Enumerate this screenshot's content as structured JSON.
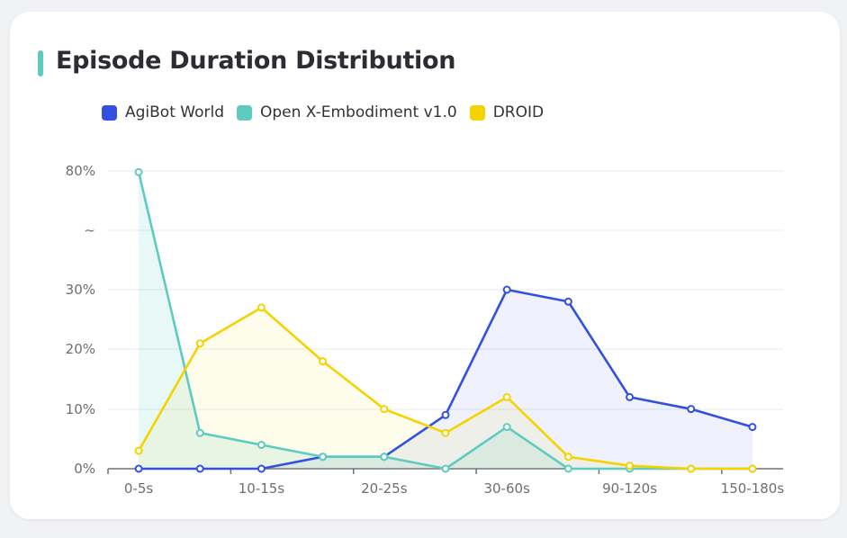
{
  "chart_data": {
    "type": "line",
    "title": "Episode Duration Distribution",
    "categories": [
      "0-5s",
      "",
      "10-15s",
      "",
      "20-25s",
      "",
      "30-60s",
      "",
      "90-120s",
      "",
      "150-180s"
    ],
    "y_ticks": [
      {
        "value": 0,
        "label": "0%"
      },
      {
        "value": 10,
        "label": "10%"
      },
      {
        "value": 20,
        "label": "20%"
      },
      {
        "value": 30,
        "label": "30%"
      },
      {
        "value": null,
        "label": "~"
      },
      {
        "value": 80,
        "label": "80%"
      }
    ],
    "axis_break": [
      30,
      80
    ],
    "ylim": [
      0,
      80
    ],
    "grid": true,
    "legend_position": "top",
    "area_fill": true,
    "series": [
      {
        "name": "AgiBot World",
        "color": "#3350e0",
        "values": [
          0,
          0,
          0,
          2,
          2,
          9,
          30,
          28,
          12,
          10,
          7
        ]
      },
      {
        "name": "Open X-Embodiment v1.0",
        "color": "#5ecbc1",
        "values": [
          79.5,
          6,
          4,
          2,
          2,
          0,
          7,
          0,
          0,
          0,
          0
        ]
      },
      {
        "name": "DROID",
        "color": "#f5d300",
        "values": [
          3,
          21,
          27,
          18,
          10,
          6,
          12,
          2,
          0.5,
          0,
          0
        ]
      }
    ]
  },
  "accent_color": "#5ecbc1"
}
